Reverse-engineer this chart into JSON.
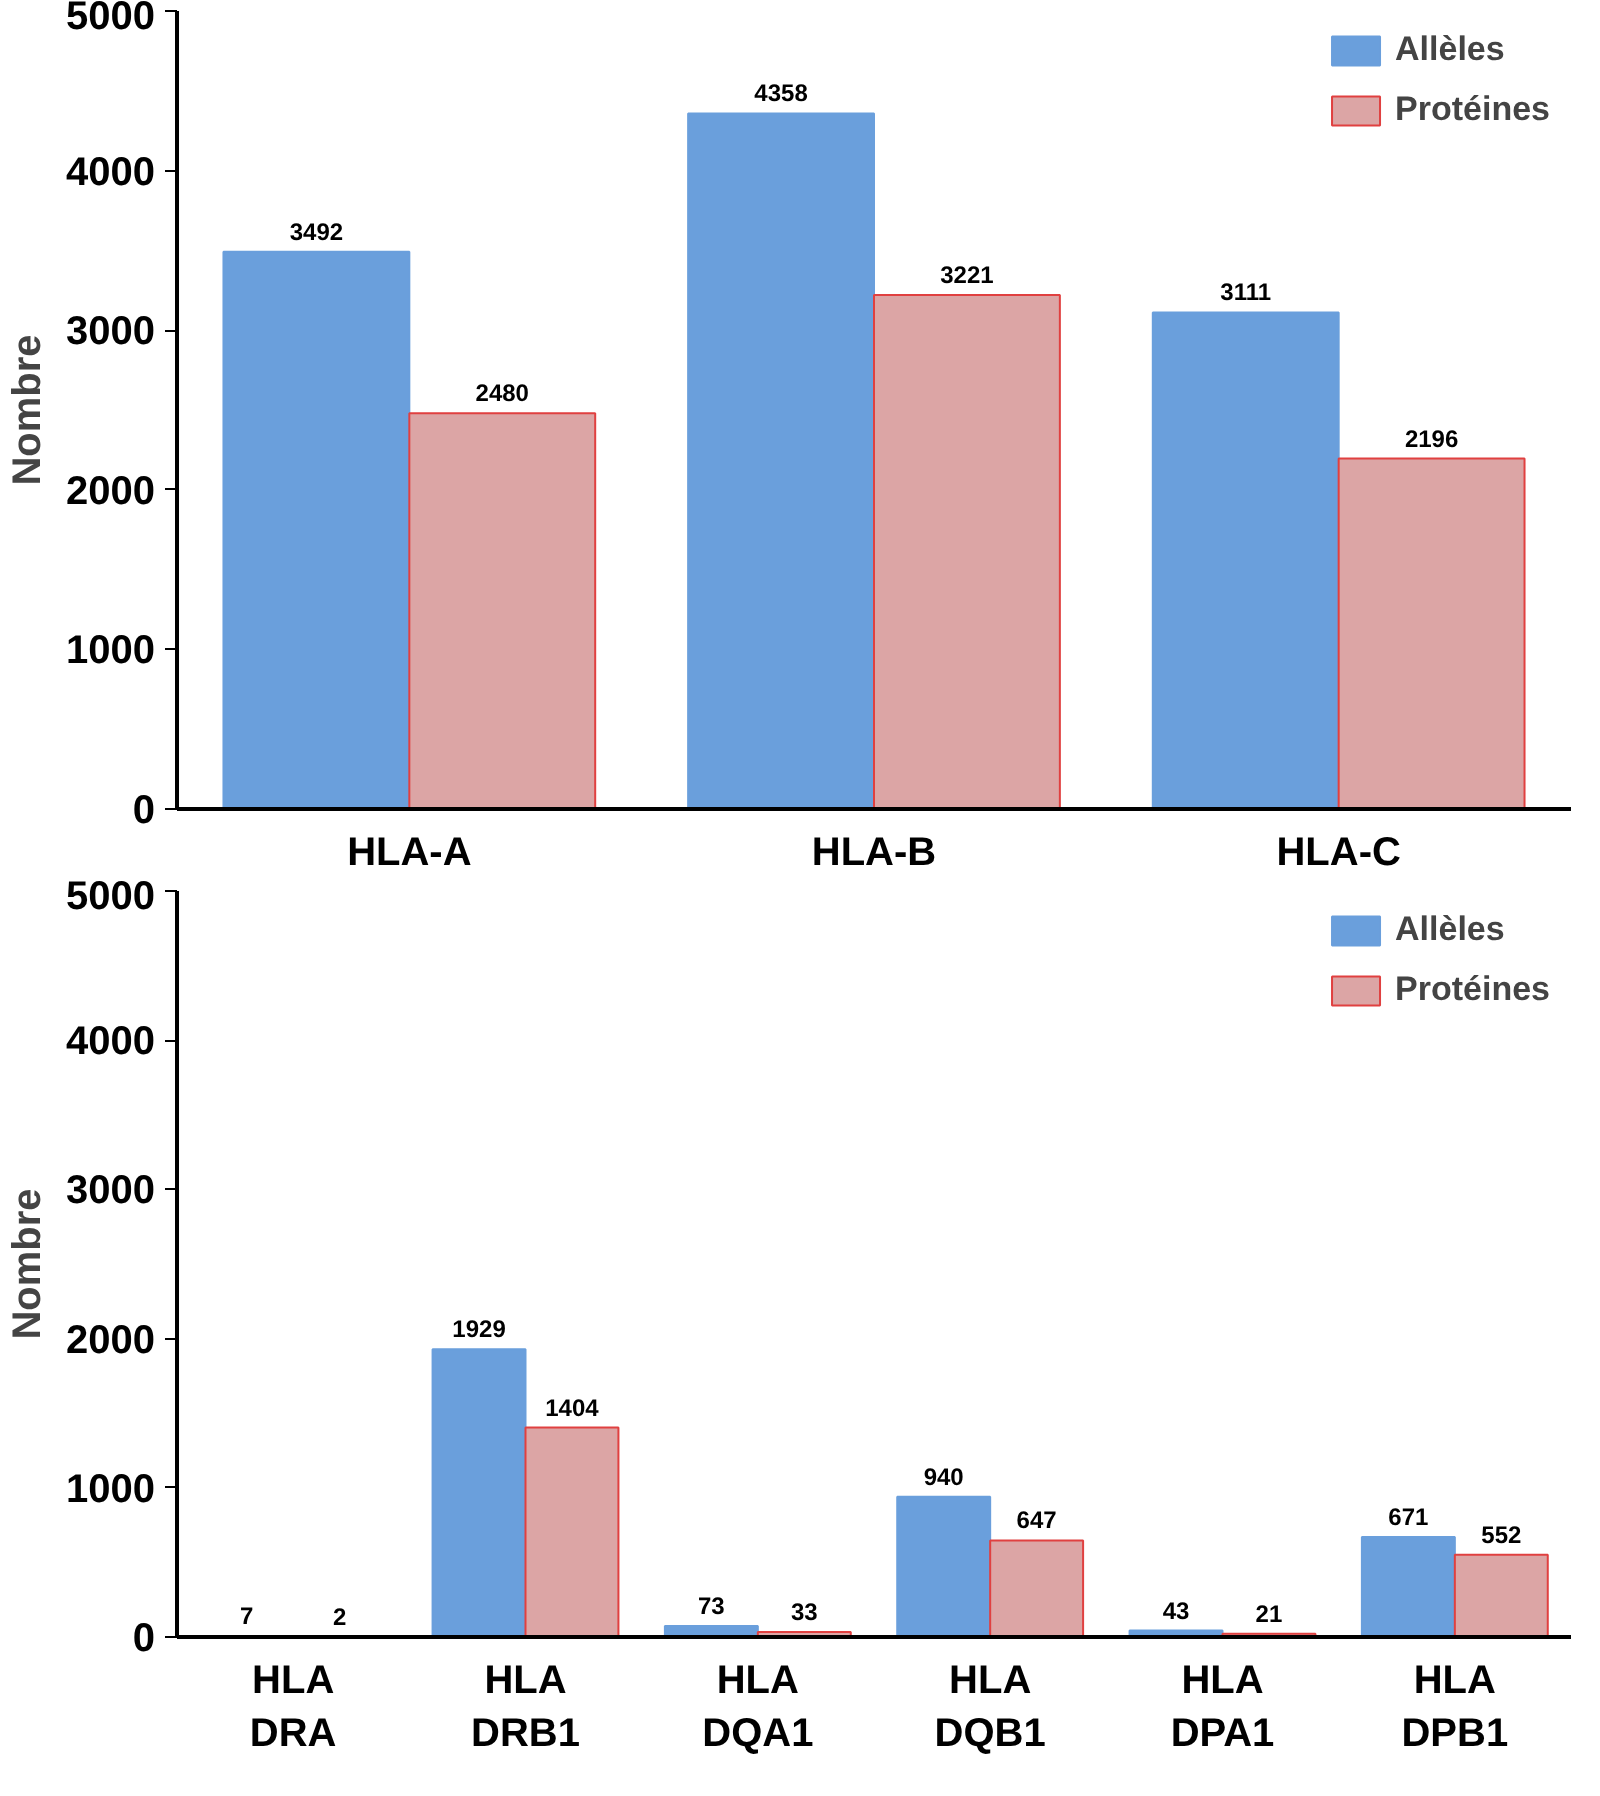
{
  "chart_data": [
    {
      "type": "bar",
      "ylabel": "Nombre",
      "categories": [
        "HLA-A",
        "HLA-B",
        "HLA-C"
      ],
      "series": [
        {
          "name": "Allèles",
          "color": "#6a9fdc",
          "values": [
            3492,
            4358,
            3111
          ]
        },
        {
          "name": "Protéines",
          "color": "#dca5a5",
          "values": [
            2480,
            3221,
            2196
          ]
        }
      ],
      "ylim": [
        0,
        5000
      ],
      "yticks": [
        0,
        1000,
        2000,
        3000,
        4000,
        5000
      ],
      "grid": false,
      "legend": "top right",
      "data_labels": true
    },
    {
      "type": "bar",
      "ylabel": "Nombre",
      "categories": [
        "HLA\nDRA",
        "HLA\nDRB1",
        "HLA\nDQA1",
        "HLA\nDQB1",
        "HLA\nDPA1",
        "HLA\nDPB1"
      ],
      "series": [
        {
          "name": "Allèles",
          "color": "#6a9fdc",
          "values": [
            7,
            1929,
            73,
            940,
            43,
            671
          ]
        },
        {
          "name": "Protéines",
          "color": "#dca5a5",
          "values": [
            2,
            1404,
            33,
            647,
            21,
            552
          ]
        }
      ],
      "ylim": [
        0,
        5000
      ],
      "yticks": [
        0,
        1000,
        2000,
        3000,
        4000,
        5000
      ],
      "grid": false,
      "legend": "top right",
      "data_labels": true
    }
  ]
}
